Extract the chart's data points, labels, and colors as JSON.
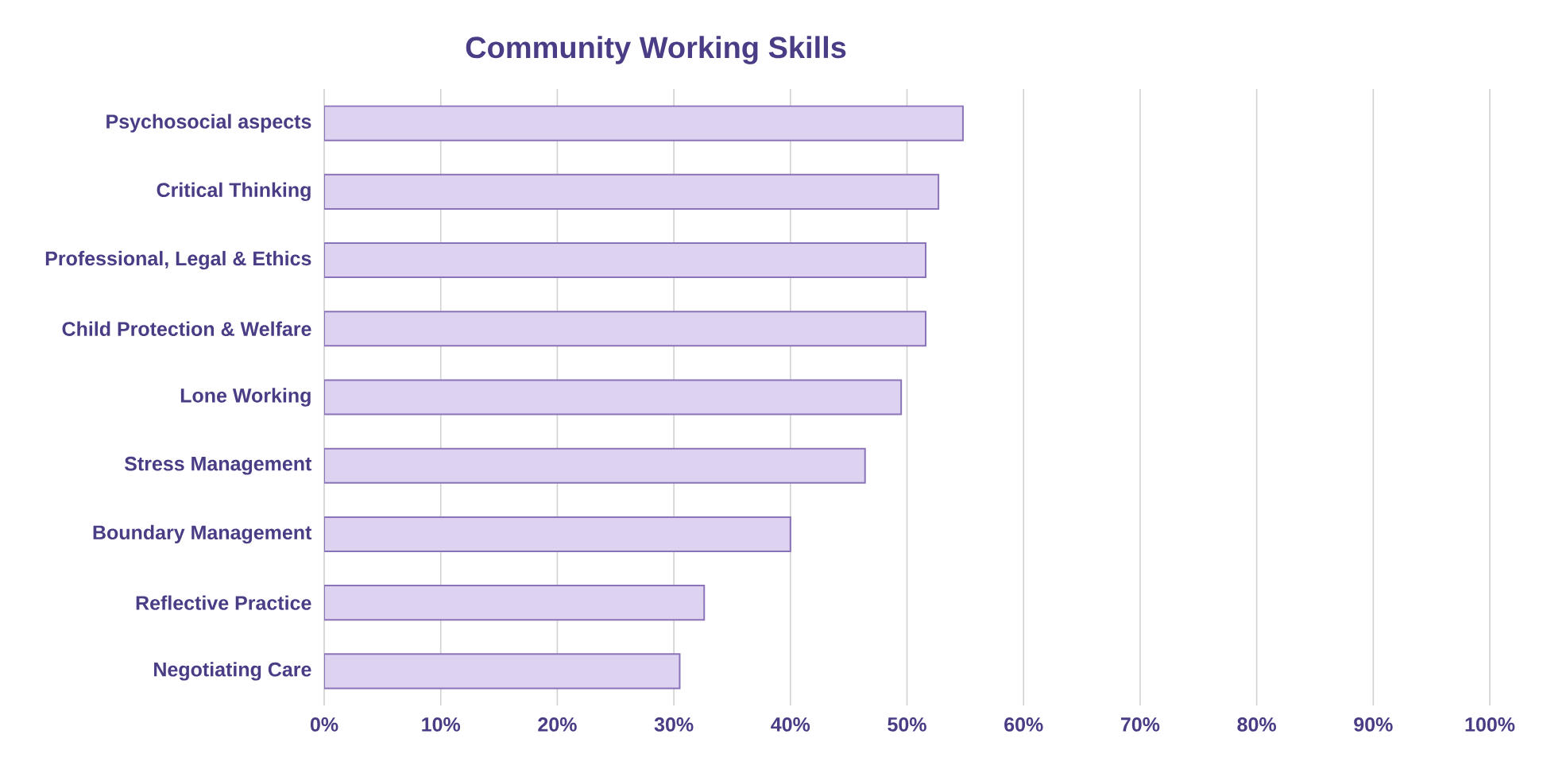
{
  "chart_data": {
    "type": "bar",
    "orientation": "horizontal",
    "title": "Community Working Skills",
    "categories": [
      "Psychosocial aspects",
      "Critical Thinking",
      "Professional, Legal & Ethics",
      "Child Protection & Welfare",
      "Lone Working",
      "Stress Management",
      "Boundary Management",
      "Reflective Practice",
      "Negotiating Care"
    ],
    "values": [
      54.8,
      52.7,
      51.6,
      51.6,
      49.5,
      46.4,
      40.0,
      32.6,
      30.5
    ],
    "color": "#ddd3f0",
    "xlim": [
      0,
      100
    ],
    "xticks": [
      {
        "value": 0,
        "label": "0%"
      },
      {
        "value": 10,
        "label": "10%"
      },
      {
        "value": 20,
        "label": "20%"
      },
      {
        "value": 30,
        "label": "30%"
      },
      {
        "value": 40,
        "label": "40%"
      },
      {
        "value": 50,
        "label": "50%"
      },
      {
        "value": 60,
        "label": "60%"
      },
      {
        "value": 70,
        "label": "70%"
      },
      {
        "value": 80,
        "label": "80%"
      },
      {
        "value": 90,
        "label": "90%"
      },
      {
        "value": 100,
        "label": "100%"
      }
    ],
    "grid": "x"
  }
}
